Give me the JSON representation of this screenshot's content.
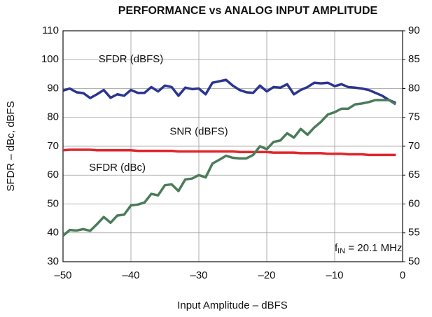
{
  "chart_data": {
    "type": "line",
    "title": "PERFORMANCE vs ANALOG INPUT AMPLITUDE",
    "xlabel": "Input Amplitude – dBFS",
    "ylabel": "SFDR – dBc, dBFS",
    "x": [
      -50,
      -49,
      -48,
      -47,
      -46,
      -45,
      -44,
      -43,
      -42,
      -41,
      -40,
      -39,
      -38,
      -37,
      -36,
      -35,
      -34,
      -33,
      -32,
      -31,
      -30,
      -29,
      -28,
      -27,
      -26,
      -25,
      -24,
      -23,
      -22,
      -21,
      -20,
      -19,
      -18,
      -17,
      -16,
      -15,
      -14,
      -13,
      -12,
      -11,
      -10,
      -9,
      -8,
      -7,
      -6,
      -5,
      -4,
      -3,
      -2,
      -1
    ],
    "series": [
      {
        "name": "SFDR (dBFS)",
        "color": "#2a3590",
        "values": [
          89.3,
          90,
          88.7,
          88.4,
          86.7,
          88,
          89.5,
          86.8,
          88,
          87.5,
          89.5,
          88.5,
          88.5,
          90.5,
          89,
          91,
          90.5,
          87.5,
          90.3,
          89.8,
          90,
          88,
          92,
          92.5,
          93,
          91,
          89.5,
          88.7,
          88.5,
          91,
          89,
          90.5,
          90.3,
          91.5,
          88,
          89.5,
          90.5,
          92,
          91.8,
          92,
          90.8,
          91.5,
          90.5,
          90.3,
          90,
          89.5,
          88.5,
          87.5,
          86,
          85
        ]
      },
      {
        "name": "SNR (dBFS)",
        "color": "#e0262b",
        "axis": "y2",
        "values": [
          69.3,
          69.4,
          69.4,
          69.4,
          69.4,
          69.3,
          69.3,
          69.3,
          69.3,
          69.3,
          69.3,
          69.2,
          69.2,
          69.2,
          69.2,
          69.2,
          69.2,
          69.1,
          69.1,
          69.1,
          69.1,
          69.1,
          69.1,
          69.1,
          69.1,
          69.1,
          69.0,
          69.0,
          69.0,
          69.0,
          69.0,
          68.9,
          68.9,
          68.9,
          68.9,
          68.8,
          68.8,
          68.8,
          68.8,
          68.7,
          68.7,
          68.7,
          68.6,
          68.6,
          68.6,
          68.5,
          68.5,
          68.5,
          68.5,
          68.5
        ]
      },
      {
        "name": "SFDR (dBc)",
        "color": "#4a7c59",
        "values": [
          39,
          41,
          40.8,
          41.3,
          40.7,
          43,
          45.5,
          43.5,
          46,
          46.3,
          49.5,
          49.8,
          50.5,
          53.5,
          53,
          56.5,
          56.8,
          54.5,
          58.5,
          58.8,
          60,
          59.2,
          64,
          65.3,
          66.7,
          66,
          65.8,
          65.8,
          67,
          70,
          69,
          71.5,
          72,
          74.5,
          73,
          76,
          74,
          76.5,
          78.5,
          81,
          81.8,
          83,
          83,
          84.5,
          84.8,
          85.3,
          86,
          86,
          86,
          84.5
        ]
      }
    ],
    "annotation": [
      "f",
      "IN",
      " = 20.1 MHz"
    ],
    "xlim": [
      -50,
      0
    ],
    "xticks": [
      {
        "value": -50,
        "label": "–50"
      },
      {
        "value": -40,
        "label": "–40"
      },
      {
        "value": -30,
        "label": "–30"
      },
      {
        "value": -20,
        "label": "–20"
      },
      {
        "value": -10,
        "label": "–10"
      },
      0
    ],
    "ylim": [
      30,
      110
    ],
    "yticks": [
      30,
      40,
      50,
      60,
      70,
      80,
      90,
      100,
      110
    ],
    "y2lim": [
      50,
      90
    ],
    "y2ticks": [
      50,
      55,
      60,
      65,
      70,
      75,
      80,
      85,
      90
    ],
    "grid": true
  }
}
